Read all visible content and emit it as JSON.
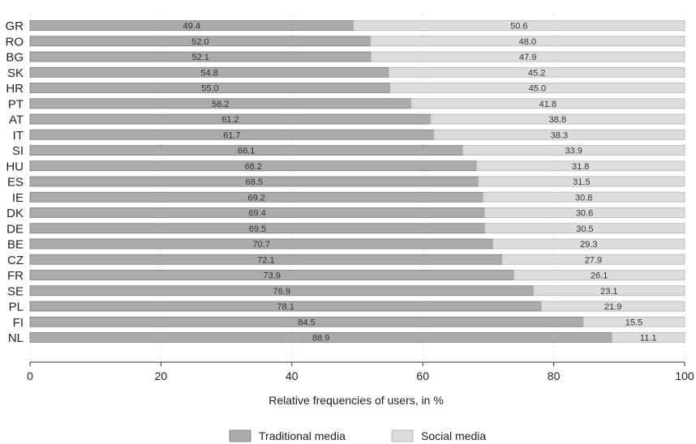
{
  "chart_data": {
    "type": "bar",
    "orientation": "horizontal",
    "stacked": true,
    "categories": [
      "GR",
      "RO",
      "BG",
      "SK",
      "HR",
      "PT",
      "AT",
      "IT",
      "SI",
      "HU",
      "ES",
      "IE",
      "DK",
      "DE",
      "BE",
      "CZ",
      "FR",
      "SE",
      "PL",
      "FI",
      "NL"
    ],
    "series": [
      {
        "name": "Traditional media",
        "color": "#ababab",
        "values": [
          49.4,
          52.0,
          52.1,
          54.8,
          55.0,
          58.2,
          61.2,
          61.7,
          66.1,
          68.2,
          68.5,
          69.2,
          69.4,
          69.5,
          70.7,
          72.1,
          73.9,
          76.9,
          78.1,
          84.5,
          88.9
        ]
      },
      {
        "name": "Social media",
        "color": "#dcdcdc",
        "values": [
          50.6,
          48.0,
          47.9,
          45.2,
          45.0,
          41.8,
          38.8,
          38.3,
          33.9,
          31.8,
          31.5,
          30.8,
          30.6,
          30.5,
          29.3,
          27.9,
          26.1,
          23.1,
          21.9,
          15.5,
          11.1
        ]
      }
    ],
    "value_labels": {
      "traditional": [
        "49.4",
        "52.0",
        "52.1",
        "54.8",
        "55.0",
        "58.2",
        "61.2",
        "61.7",
        "66.1",
        "68.2",
        "68.5",
        "69.2",
        "69.4",
        "69.5",
        "70.7",
        "72.1",
        "73.9",
        "76.9",
        "78.1",
        "84.5",
        "88.9"
      ],
      "social": [
        "50.6",
        "48.0",
        "47.9",
        "45.2",
        "45.0",
        "41.8",
        "38.8",
        "38.3",
        "33.9",
        "31.8",
        "31.5",
        "30.8",
        "30.6",
        "30.5",
        "29.3",
        "27.9",
        "26.1",
        "23.1",
        "21.9",
        "15.5",
        "11.1"
      ]
    },
    "xlim": [
      0,
      100
    ],
    "xticks": [
      "0",
      "20",
      "40",
      "60",
      "80",
      "100"
    ],
    "xlabel": "Relative frequencies of users, in %",
    "grid": "vertical dotted",
    "legend_position": "bottom-center"
  }
}
